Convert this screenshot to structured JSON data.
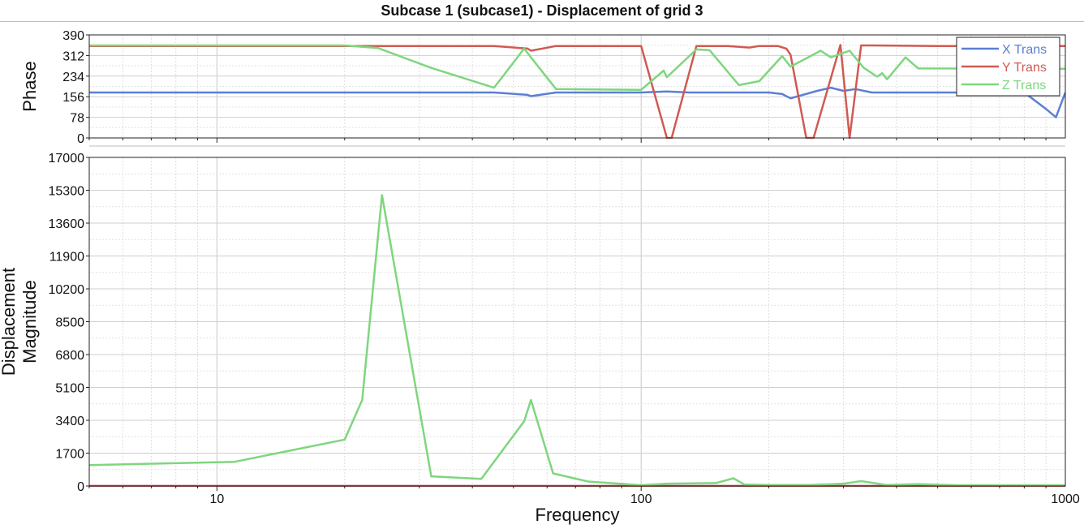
{
  "window": {
    "title": "Subcase 1 (subcase1) - Displacement of grid 3"
  },
  "chart_data": [
    {
      "type": "line",
      "panel": "phase",
      "ylabel": "Phase",
      "xscale": "log",
      "xlim": [
        5,
        1000
      ],
      "ylim": [
        0,
        390
      ],
      "yticks": [
        "0",
        "78",
        "156",
        "234",
        "312",
        "390"
      ],
      "grid": true,
      "legend_position": "top-right",
      "series": [
        {
          "name": "X Trans",
          "color": "#5b7fd4",
          "x": [
            5,
            20,
            30,
            45,
            54,
            55,
            63,
            100,
            115,
            130,
            170,
            200,
            215,
            225,
            260,
            280,
            300,
            320,
            350,
            400,
            500,
            800,
            900,
            950,
            1000
          ],
          "y": [
            172,
            172,
            172,
            172,
            163,
            158,
            172,
            172,
            176,
            172,
            172,
            172,
            166,
            150,
            178,
            190,
            178,
            185,
            172,
            172,
            172,
            172,
            110,
            78,
            172
          ]
        },
        {
          "name": "Y Trans",
          "color": "#d05a52",
          "x": [
            5,
            20,
            30,
            45,
            54,
            55,
            63,
            100,
            115,
            118,
            135,
            160,
            180,
            190,
            210,
            220,
            225,
            245,
            250,
            255,
            295,
            310,
            330,
            350,
            500,
            1000
          ],
          "y": [
            348,
            348,
            348,
            348,
            338,
            330,
            348,
            348,
            0,
            0,
            348,
            348,
            342,
            348,
            348,
            338,
            315,
            0,
            0,
            0,
            352,
            0,
            350,
            350,
            348,
            348
          ]
        },
        {
          "name": "Z Trans",
          "color": "#7fd67f",
          "x": [
            5,
            20,
            24,
            32,
            45,
            53,
            55,
            63,
            100,
            113,
            115,
            135,
            145,
            170,
            190,
            215,
            225,
            265,
            280,
            310,
            335,
            360,
            370,
            380,
            420,
            450,
            1000
          ],
          "y": [
            350,
            350,
            340,
            265,
            190,
            338,
            305,
            185,
            182,
            255,
            230,
            335,
            332,
            200,
            215,
            310,
            270,
            330,
            305,
            330,
            265,
            232,
            245,
            222,
            305,
            263,
            262
          ]
        }
      ]
    },
    {
      "type": "line",
      "panel": "magnitude",
      "ylabel": "Displacement Magnitude",
      "xlabel": "Frequency",
      "xscale": "log",
      "xlim": [
        5,
        1000
      ],
      "xticks": [
        "10",
        "100",
        "1000"
      ],
      "ylim": [
        0,
        17000
      ],
      "yticks": [
        "0",
        "1700",
        "3400",
        "5100",
        "6800",
        "8500",
        "10200",
        "11900",
        "13600",
        "15300",
        "17000"
      ],
      "grid": true,
      "series": [
        {
          "name": "X Trans",
          "color": "#5b7fd4",
          "x": [
            5,
            1000
          ],
          "y": [
            0,
            0
          ]
        },
        {
          "name": "Y Trans",
          "color": "#d05a52",
          "x": [
            5,
            1000
          ],
          "y": [
            0,
            0
          ]
        },
        {
          "name": "Z Trans",
          "color": "#7fd67f",
          "x": [
            5,
            11,
            20,
            22,
            24.5,
            32,
            42,
            53,
            55,
            62,
            75,
            100,
            115,
            150,
            165,
            175,
            200,
            250,
            300,
            330,
            380,
            450,
            550,
            700,
            1000
          ],
          "y": [
            1080,
            1250,
            2400,
            4450,
            15050,
            500,
            370,
            3350,
            4450,
            650,
            230,
            40,
            120,
            150,
            400,
            80,
            50,
            50,
            120,
            250,
            50,
            100,
            40,
            30,
            30
          ]
        }
      ]
    }
  ]
}
